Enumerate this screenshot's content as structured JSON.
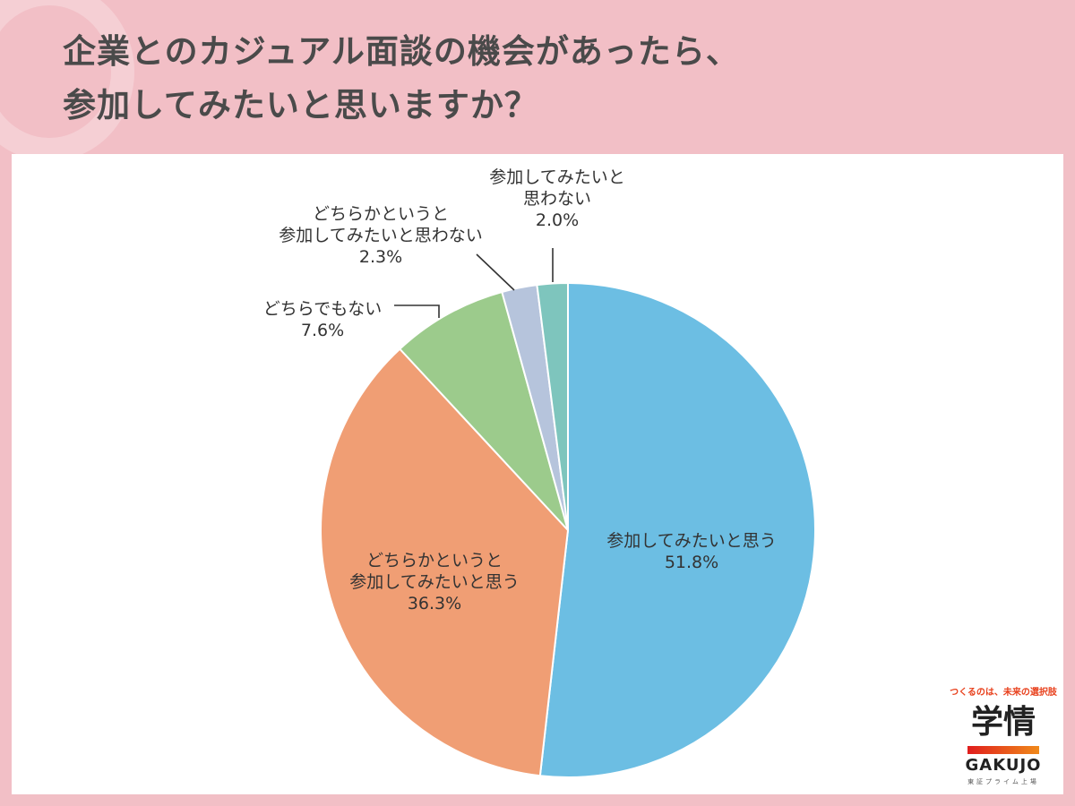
{
  "title": {
    "line1": "企業とのカジュアル面談の機会があったら、",
    "line2": "参加してみたいと思いますか？"
  },
  "chart_data": {
    "type": "pie",
    "title": "企業とのカジュアル面談の機会があったら、参加してみたいと思いますか？",
    "categories": [
      "参加してみたいと思う",
      "どちらかというと参加してみたいと思う",
      "どちらでもない",
      "どちらかというと参加してみたいと思わない",
      "参加してみたいと思わない"
    ],
    "values": [
      51.8,
      36.3,
      7.6,
      2.3,
      2.0
    ],
    "colors": [
      "#6cbee3",
      "#f09e74",
      "#9ccb8c",
      "#b6c4dc",
      "#7ec5bd"
    ],
    "start_angle": "12 o'clock, clockwise"
  },
  "labels": {
    "s1": {
      "name": "参加してみたいと思う",
      "value": "51.8%"
    },
    "s2": {
      "name1": "どちらかというと",
      "name2": "参加してみたいと思う",
      "value": "36.3%"
    },
    "s3": {
      "name": "どちらでもない",
      "value": "7.6%"
    },
    "s4": {
      "name1": "どちらかというと",
      "name2": "参加してみたいと思わない",
      "value": "2.3%"
    },
    "s5": {
      "name1": "参加してみたいと",
      "name2": "思わない",
      "value": "2.0%"
    }
  },
  "logo": {
    "tagline": "つくるのは、未来の選択肢",
    "kanji": "学情",
    "english": "GAKUJO",
    "sub": "東証プライム上場"
  }
}
